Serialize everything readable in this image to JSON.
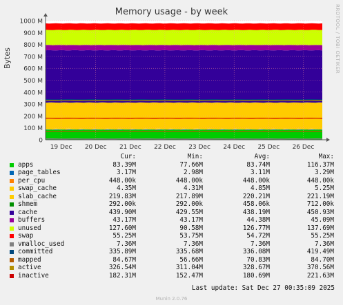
{
  "chart_data": {
    "type": "area",
    "title": "Memory usage - by week",
    "ylabel": "Bytes",
    "ylim": [
      0,
      1000
    ],
    "y_unit": "M",
    "y_ticks": [
      "0",
      "100 M",
      "200 M",
      "300 M",
      "400 M",
      "500 M",
      "600 M",
      "700 M",
      "800 M",
      "900 M",
      "1000 M"
    ],
    "x_ticks": [
      "19 Dec",
      "20 Dec",
      "21 Dec",
      "22 Dec",
      "23 Dec",
      "24 Dec",
      "25 Dec",
      "26 Dec"
    ],
    "grid": true,
    "stacked_series": [
      {
        "name": "apps",
        "color": "#00cc00",
        "avg_mb": 83.74
      },
      {
        "name": "page_tables",
        "color": "#0066b3",
        "avg_mb": 3.11
      },
      {
        "name": "per_cpu",
        "color": "#ff8000",
        "avg_mb": 0.44
      },
      {
        "name": "swap_cache",
        "color": "#ffcc00",
        "avg_mb": 4.85
      },
      {
        "name": "slab_cache",
        "color": "#ffcc00",
        "avg_mb": 220.21
      },
      {
        "name": "shmem",
        "color": "#008f00",
        "avg_mb": 0.46
      },
      {
        "name": "cache",
        "color": "#330099",
        "avg_mb": 438.19
      },
      {
        "name": "buffers",
        "color": "#990099",
        "avg_mb": 44.38
      },
      {
        "name": "unused",
        "color": "#ccff00",
        "avg_mb": 126.77
      },
      {
        "name": "swap",
        "color": "#ff0000",
        "avg_mb": 54.72
      }
    ],
    "line_series": [
      {
        "name": "vmalloc_used",
        "color": "#808080",
        "avg_mb": 7.36
      },
      {
        "name": "committed",
        "color": "#00487d",
        "avg_mb": 336.08
      },
      {
        "name": "mapped",
        "color": "#b35a00",
        "avg_mb": 70.83
      },
      {
        "name": "active",
        "color": "#b38f00",
        "avg_mb": 328.67
      },
      {
        "name": "inactive",
        "color": "#cc0000",
        "avg_mb": 180.69
      }
    ]
  },
  "side_label": "RRDTOOL / TOBI OETIKER",
  "legend": {
    "headers": [
      "Cur:",
      "Min:",
      "Avg:",
      "Max:"
    ],
    "rows": [
      {
        "name": "apps",
        "color": "#00cc00",
        "cur": "83.39M",
        "min": "77.66M",
        "avg": "83.74M",
        "max": "116.37M"
      },
      {
        "name": "page_tables",
        "color": "#0066b3",
        "cur": "3.17M",
        "min": "2.98M",
        "avg": "3.11M",
        "max": "3.29M"
      },
      {
        "name": "per_cpu",
        "color": "#ff8000",
        "cur": "448.00k",
        "min": "448.00k",
        "avg": "448.00k",
        "max": "448.00k"
      },
      {
        "name": "swap_cache",
        "color": "#ffcc00",
        "cur": "4.35M",
        "min": "4.31M",
        "avg": "4.85M",
        "max": "5.25M"
      },
      {
        "name": "slab_cache",
        "color": "#ffcc00",
        "cur": "219.83M",
        "min": "217.89M",
        "avg": "220.21M",
        "max": "221.19M"
      },
      {
        "name": "shmem",
        "color": "#008f00",
        "cur": "292.00k",
        "min": "292.00k",
        "avg": "458.06k",
        "max": "712.00k"
      },
      {
        "name": "cache",
        "color": "#330099",
        "cur": "439.90M",
        "min": "429.55M",
        "avg": "438.19M",
        "max": "450.93M"
      },
      {
        "name": "buffers",
        "color": "#990099",
        "cur": "43.17M",
        "min": "43.17M",
        "avg": "44.38M",
        "max": "45.09M"
      },
      {
        "name": "unused",
        "color": "#ccff00",
        "cur": "127.60M",
        "min": "90.58M",
        "avg": "126.77M",
        "max": "137.69M"
      },
      {
        "name": "swap",
        "color": "#ff0000",
        "cur": "55.25M",
        "min": "53.75M",
        "avg": "54.72M",
        "max": "55.25M"
      },
      {
        "name": "vmalloc_used",
        "color": "#808080",
        "cur": "7.36M",
        "min": "7.36M",
        "avg": "7.36M",
        "max": "7.36M"
      },
      {
        "name": "committed",
        "color": "#00487d",
        "cur": "335.89M",
        "min": "335.68M",
        "avg": "336.08M",
        "max": "419.49M"
      },
      {
        "name": "mapped",
        "color": "#b35a00",
        "cur": "84.67M",
        "min": "56.66M",
        "avg": "70.83M",
        "max": "84.70M"
      },
      {
        "name": "active",
        "color": "#b38f00",
        "cur": "326.54M",
        "min": "311.04M",
        "avg": "328.67M",
        "max": "370.56M"
      },
      {
        "name": "inactive",
        "color": "#cc0000",
        "cur": "182.31M",
        "min": "152.47M",
        "avg": "180.69M",
        "max": "221.63M"
      }
    ]
  },
  "footer": {
    "last_update": "Last update: Sat Dec 27 00:35:09 2025",
    "generator": "Munin 2.0.76"
  }
}
